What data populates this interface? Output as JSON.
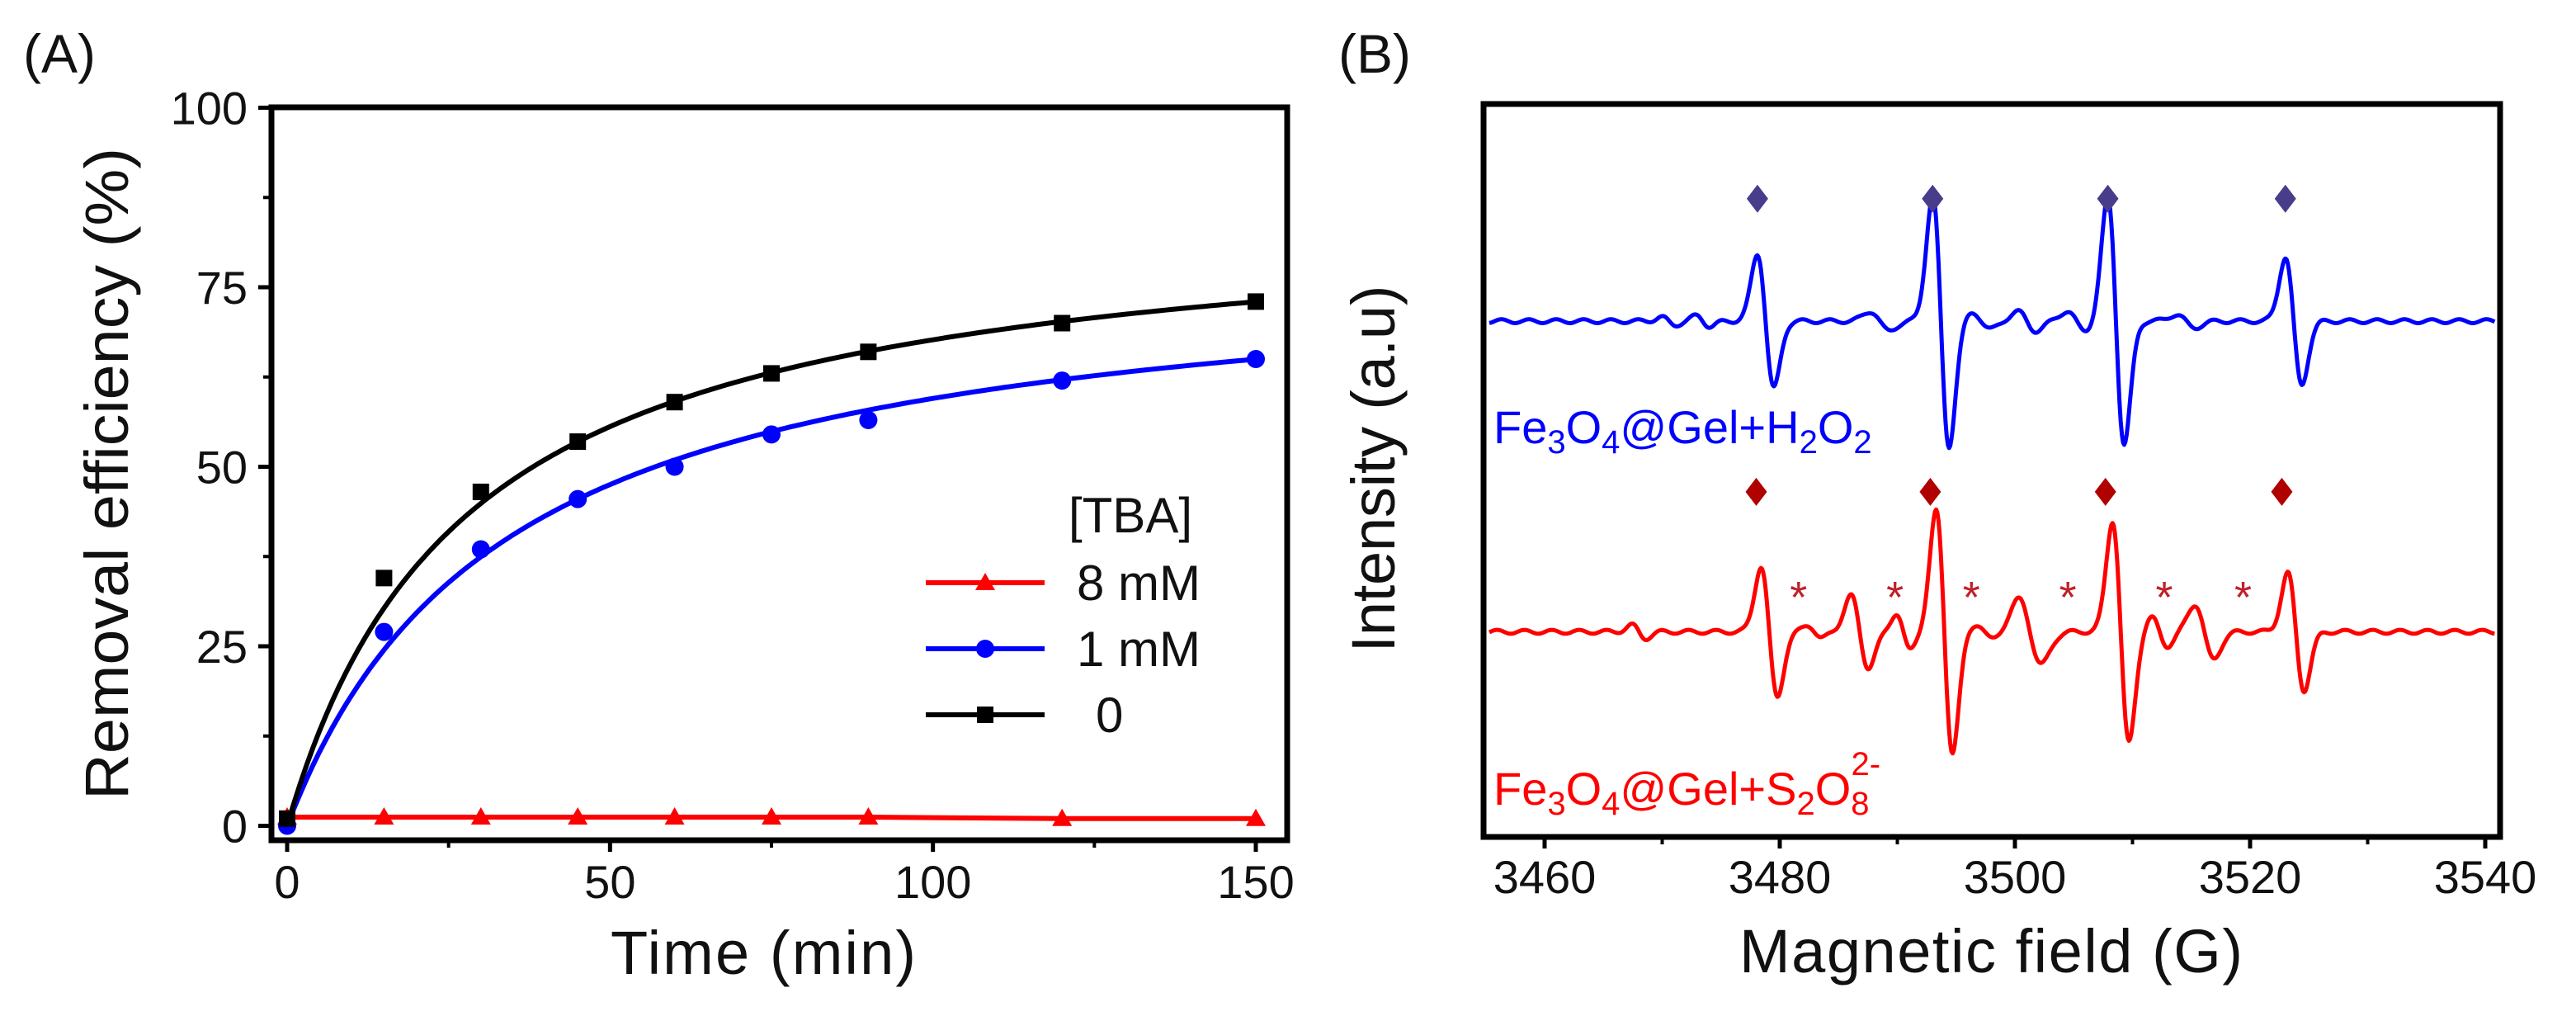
{
  "panels": {
    "a_label": "(A)",
    "b_label": "(B)"
  },
  "chart_data": [
    {
      "type": "line",
      "panel": "A",
      "xlabel": "Time (min)",
      "ylabel": "Removal efficiency (%)",
      "xlim": [
        -3,
        156
      ],
      "ylim": [
        -3,
        100
      ],
      "xticks": [
        0,
        50,
        100,
        150
      ],
      "xticks_minor": [
        25,
        75,
        125
      ],
      "yticks": [
        0,
        25,
        50,
        75,
        100
      ],
      "yticks_minor": [
        12.5,
        37.5,
        62.5,
        87.5
      ],
      "grid": false,
      "x": [
        0,
        15,
        30,
        45,
        60,
        75,
        90,
        120,
        150
      ],
      "legend": {
        "title": "[TBA]",
        "placement": "center-right"
      },
      "series": [
        {
          "name": "8 mM",
          "color": "#ff0000",
          "marker": "triangle",
          "values": [
            1.2,
            1.2,
            1.2,
            1.2,
            1.2,
            1.2,
            1.2,
            1.0,
            1.0
          ],
          "fit": {
            "model": "flat",
            "values": [
              1.2,
              1.2,
              1.2,
              1.2,
              1.2,
              1.2,
              1.2,
              1.0,
              1.0
            ]
          }
        },
        {
          "name": "1 mM",
          "color": "#0000ff",
          "marker": "circle",
          "values": [
            0,
            27,
            38.5,
            45.5,
            50,
            54.5,
            56.5,
            62,
            65
          ],
          "fit": {
            "model": "a*t/(b+t)",
            "a": 79.6,
            "b": 33.75
          }
        },
        {
          "name": "0",
          "color": "#000000",
          "marker": "square",
          "values": [
            1,
            34.5,
            46.5,
            53.5,
            59,
            63,
            66,
            70,
            73
          ],
          "fit": {
            "model": "a*t/(b+t)",
            "a": 86.5,
            "b": 27.8
          }
        }
      ]
    },
    {
      "type": "line",
      "panel": "B",
      "xlabel": "Magnetic field (G)",
      "ylabel": "Intensity (a.u)",
      "xlim": [
        3454.8,
        3541.2
      ],
      "ylim": [
        0,
        11.25
      ],
      "xticks": [
        3460,
        3480,
        3500,
        3520,
        3540
      ],
      "xticks_minor": [
        3470,
        3490,
        3510,
        3530
      ],
      "grid": false,
      "series": [
        {
          "name": "Fe3O4@Gel+H2O2",
          "color": "#0000ff",
          "offset": 7.92,
          "label_parts": [
            {
              "t": "Fe"
            },
            {
              "t": "3",
              "sub": true
            },
            {
              "t": "O"
            },
            {
              "t": "4",
              "sub": true
            },
            {
              "t": "@Gel+H"
            },
            {
              "t": "2",
              "sub": true
            },
            {
              "t": "O"
            },
            {
              "t": "2",
              "sub": true
            }
          ],
          "peaks": [
            [
              3478.8,
              0.7,
              1.03
            ],
            [
              3493.7,
              0.7,
              1.93
            ],
            [
              3508.6,
              0.7,
              1.9
            ],
            [
              3523.7,
              0.7,
              0.98
            ]
          ],
          "minor": [
            [
              3488.5,
              0.8,
              0.15
            ],
            [
              3497.2,
              0.8,
              0.12
            ],
            [
              3501,
              0.8,
              0.15
            ],
            [
              3505.2,
              0.8,
              0.15
            ],
            [
              3514.5,
              0.8,
              0.1
            ],
            [
              3470.5,
              0.6,
              0.06
            ],
            [
              3473.5,
              0.6,
              0.08
            ]
          ],
          "markers": {
            "symbol": "diamond",
            "color": "#483d8b",
            "level": 9.8,
            "fields": [
              3478.1,
              3493,
              3507.9,
              3523
            ]
          }
        },
        {
          "name": "Fe3O4@Gel+S2O8 2-",
          "color": "#ff0000",
          "offset": 3.15,
          "label_parts": [
            {
              "t": "Fe"
            },
            {
              "t": "3",
              "sub": true
            },
            {
              "t": "O"
            },
            {
              "t": "4",
              "sub": true
            },
            {
              "t": "@Gel+S"
            },
            {
              "t": "2",
              "sub": true
            },
            {
              "t": "O"
            },
            {
              "t": "8",
              "sub": true
            },
            {
              "t": "2-",
              "sup": true
            }
          ],
          "peaks": [
            [
              3479.1,
              0.7,
              1.0
            ],
            [
              3494.0,
              0.7,
              1.85
            ],
            [
              3509.0,
              0.7,
              1.7
            ],
            [
              3523.9,
              0.7,
              0.9
            ]
          ],
          "minor": [
            [
              3486.8,
              0.75,
              0.55
            ],
            [
              3490.5,
              0.6,
              0.28
            ],
            [
              3501.3,
              0.95,
              0.5
            ],
            [
              3512.3,
              0.7,
              0.22
            ],
            [
              3516.1,
              0.8,
              0.42
            ],
            [
              3497.4,
              0.7,
              0.12
            ],
            [
              3468,
              0.6,
              0.1
            ],
            [
              3483,
              0.6,
              0.1
            ]
          ],
          "markers": {
            "symbol": "diamond",
            "color": "#b00000",
            "level": 5.3,
            "fields": [
              3478,
              3492.8,
              3507.7,
              3522.7
            ]
          },
          "asterisks": {
            "symbol": "*",
            "color": "#c0202a",
            "level": 3.75,
            "fields": [
              3481.6,
              3489.8,
              3496.3,
              3504.5,
              3512.7,
              3519.4
            ]
          }
        }
      ]
    }
  ]
}
